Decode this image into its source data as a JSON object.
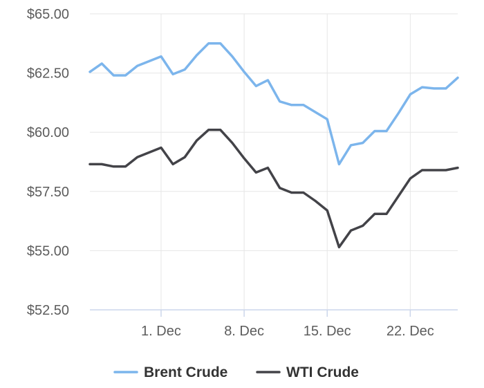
{
  "chart_data": {
    "type": "line",
    "title": "",
    "xlabel": "",
    "ylabel": "",
    "ylim": [
      52.5,
      65.0
    ],
    "y_ticks": [
      "$52.50",
      "$55.00",
      "$57.50",
      "$60.00",
      "$62.50",
      "$65.00"
    ],
    "y_tick_values": [
      52.5,
      55.0,
      57.5,
      60.0,
      62.5,
      65.0
    ],
    "x_ticks": [
      "1. Dec",
      "8. Dec",
      "15. Dec",
      "22. Dec"
    ],
    "x_tick_values": [
      "2018-12-01",
      "2018-12-08",
      "2018-12-15",
      "2018-12-22"
    ],
    "x": [
      "2018-11-25",
      "2018-11-26",
      "2018-11-27",
      "2018-11-28",
      "2018-11-29",
      "2018-12-01",
      "2018-12-02",
      "2018-12-03",
      "2018-12-04",
      "2018-12-05",
      "2018-12-06",
      "2018-12-07",
      "2018-12-08",
      "2018-12-09",
      "2018-12-10",
      "2018-12-11",
      "2018-12-12",
      "2018-12-13",
      "2018-12-14",
      "2018-12-15",
      "2018-12-16",
      "2018-12-17",
      "2018-12-18",
      "2018-12-19",
      "2018-12-20",
      "2018-12-21",
      "2018-12-22",
      "2018-12-23",
      "2018-12-24",
      "2018-12-25",
      "2018-12-26"
    ],
    "series": [
      {
        "name": "Brent Crude",
        "color": "#7cb5ec",
        "values": [
          62.55,
          62.9,
          62.4,
          62.4,
          62.8,
          63.2,
          62.45,
          62.65,
          63.25,
          63.75,
          63.75,
          63.2,
          62.55,
          61.95,
          62.2,
          61.3,
          61.15,
          61.15,
          60.85,
          60.55,
          58.65,
          59.45,
          59.55,
          60.05,
          60.05,
          60.8,
          61.6,
          61.9,
          61.85,
          61.85,
          62.3
        ]
      },
      {
        "name": "WTI Crude",
        "color": "#434348",
        "values": [
          58.65,
          58.65,
          58.55,
          58.55,
          58.95,
          59.35,
          58.65,
          58.95,
          59.65,
          60.1,
          60.1,
          59.55,
          58.9,
          58.3,
          58.5,
          57.65,
          57.45,
          57.45,
          57.1,
          56.7,
          55.15,
          55.85,
          56.05,
          56.55,
          56.55,
          57.3,
          58.05,
          58.4,
          58.4,
          58.4,
          58.5
        ]
      }
    ],
    "grid": true,
    "legend_position": "bottom-center"
  }
}
